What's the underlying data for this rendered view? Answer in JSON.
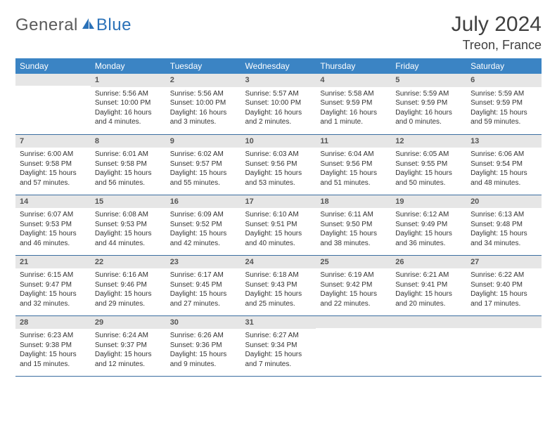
{
  "brand": {
    "part1": "General",
    "part2": "Blue"
  },
  "title": "July 2024",
  "location": "Treon, France",
  "weekdays": [
    "Sunday",
    "Monday",
    "Tuesday",
    "Wednesday",
    "Thursday",
    "Friday",
    "Saturday"
  ],
  "colors": {
    "header_bg": "#3b84c4",
    "header_text": "#ffffff",
    "daynum_bg": "#e6e6e6",
    "rule": "#3b6ea0",
    "brand_gray": "#5a5a5a",
    "brand_blue": "#2a71b8"
  },
  "start_offset": 1,
  "days": [
    {
      "n": 1,
      "sunrise": "5:56 AM",
      "sunset": "10:00 PM",
      "daylight": "16 hours and 4 minutes."
    },
    {
      "n": 2,
      "sunrise": "5:56 AM",
      "sunset": "10:00 PM",
      "daylight": "16 hours and 3 minutes."
    },
    {
      "n": 3,
      "sunrise": "5:57 AM",
      "sunset": "10:00 PM",
      "daylight": "16 hours and 2 minutes."
    },
    {
      "n": 4,
      "sunrise": "5:58 AM",
      "sunset": "9:59 PM",
      "daylight": "16 hours and 1 minute."
    },
    {
      "n": 5,
      "sunrise": "5:59 AM",
      "sunset": "9:59 PM",
      "daylight": "16 hours and 0 minutes."
    },
    {
      "n": 6,
      "sunrise": "5:59 AM",
      "sunset": "9:59 PM",
      "daylight": "15 hours and 59 minutes."
    },
    {
      "n": 7,
      "sunrise": "6:00 AM",
      "sunset": "9:58 PM",
      "daylight": "15 hours and 57 minutes."
    },
    {
      "n": 8,
      "sunrise": "6:01 AM",
      "sunset": "9:58 PM",
      "daylight": "15 hours and 56 minutes."
    },
    {
      "n": 9,
      "sunrise": "6:02 AM",
      "sunset": "9:57 PM",
      "daylight": "15 hours and 55 minutes."
    },
    {
      "n": 10,
      "sunrise": "6:03 AM",
      "sunset": "9:56 PM",
      "daylight": "15 hours and 53 minutes."
    },
    {
      "n": 11,
      "sunrise": "6:04 AM",
      "sunset": "9:56 PM",
      "daylight": "15 hours and 51 minutes."
    },
    {
      "n": 12,
      "sunrise": "6:05 AM",
      "sunset": "9:55 PM",
      "daylight": "15 hours and 50 minutes."
    },
    {
      "n": 13,
      "sunrise": "6:06 AM",
      "sunset": "9:54 PM",
      "daylight": "15 hours and 48 minutes."
    },
    {
      "n": 14,
      "sunrise": "6:07 AM",
      "sunset": "9:53 PM",
      "daylight": "15 hours and 46 minutes."
    },
    {
      "n": 15,
      "sunrise": "6:08 AM",
      "sunset": "9:53 PM",
      "daylight": "15 hours and 44 minutes."
    },
    {
      "n": 16,
      "sunrise": "6:09 AM",
      "sunset": "9:52 PM",
      "daylight": "15 hours and 42 minutes."
    },
    {
      "n": 17,
      "sunrise": "6:10 AM",
      "sunset": "9:51 PM",
      "daylight": "15 hours and 40 minutes."
    },
    {
      "n": 18,
      "sunrise": "6:11 AM",
      "sunset": "9:50 PM",
      "daylight": "15 hours and 38 minutes."
    },
    {
      "n": 19,
      "sunrise": "6:12 AM",
      "sunset": "9:49 PM",
      "daylight": "15 hours and 36 minutes."
    },
    {
      "n": 20,
      "sunrise": "6:13 AM",
      "sunset": "9:48 PM",
      "daylight": "15 hours and 34 minutes."
    },
    {
      "n": 21,
      "sunrise": "6:15 AM",
      "sunset": "9:47 PM",
      "daylight": "15 hours and 32 minutes."
    },
    {
      "n": 22,
      "sunrise": "6:16 AM",
      "sunset": "9:46 PM",
      "daylight": "15 hours and 29 minutes."
    },
    {
      "n": 23,
      "sunrise": "6:17 AM",
      "sunset": "9:45 PM",
      "daylight": "15 hours and 27 minutes."
    },
    {
      "n": 24,
      "sunrise": "6:18 AM",
      "sunset": "9:43 PM",
      "daylight": "15 hours and 25 minutes."
    },
    {
      "n": 25,
      "sunrise": "6:19 AM",
      "sunset": "9:42 PM",
      "daylight": "15 hours and 22 minutes."
    },
    {
      "n": 26,
      "sunrise": "6:21 AM",
      "sunset": "9:41 PM",
      "daylight": "15 hours and 20 minutes."
    },
    {
      "n": 27,
      "sunrise": "6:22 AM",
      "sunset": "9:40 PM",
      "daylight": "15 hours and 17 minutes."
    },
    {
      "n": 28,
      "sunrise": "6:23 AM",
      "sunset": "9:38 PM",
      "daylight": "15 hours and 15 minutes."
    },
    {
      "n": 29,
      "sunrise": "6:24 AM",
      "sunset": "9:37 PM",
      "daylight": "15 hours and 12 minutes."
    },
    {
      "n": 30,
      "sunrise": "6:26 AM",
      "sunset": "9:36 PM",
      "daylight": "15 hours and 9 minutes."
    },
    {
      "n": 31,
      "sunrise": "6:27 AM",
      "sunset": "9:34 PM",
      "daylight": "15 hours and 7 minutes."
    }
  ],
  "labels": {
    "sunrise": "Sunrise:",
    "sunset": "Sunset:",
    "daylight": "Daylight:"
  }
}
